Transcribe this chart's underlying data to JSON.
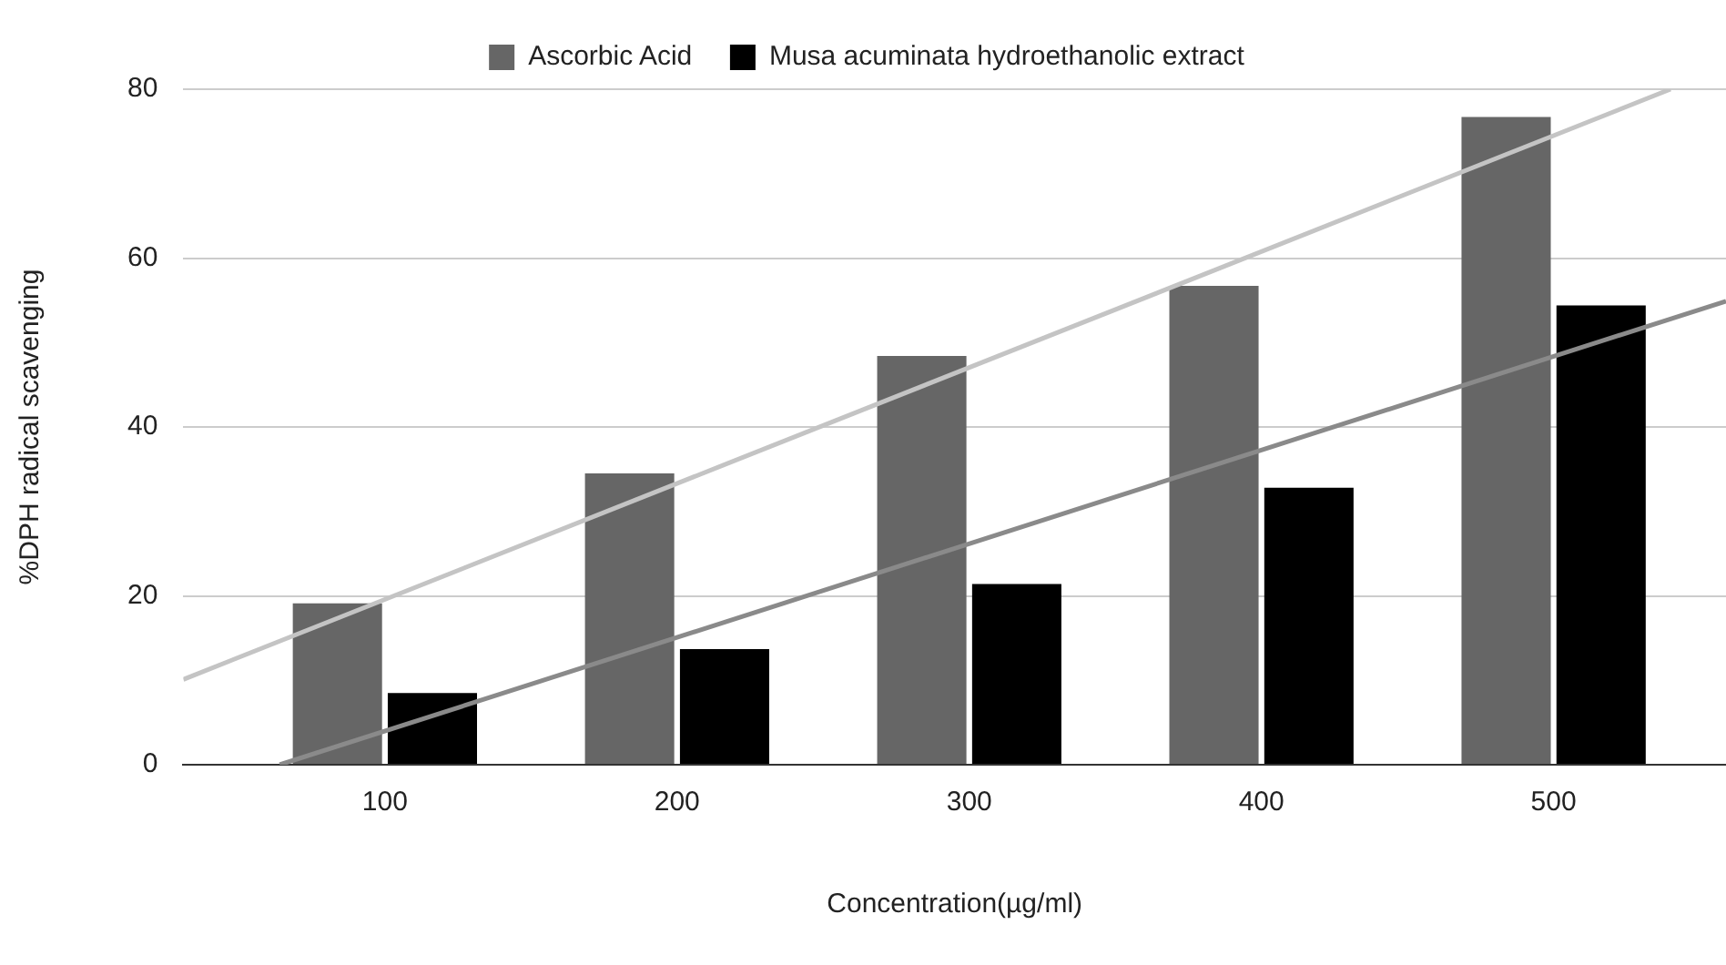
{
  "chart_data": {
    "type": "bar",
    "xlabel": "Concentration(µg/ml)",
    "ylabel": "%DPH radical scavenging",
    "x": [
      100,
      200,
      300,
      400,
      500
    ],
    "xlim": [
      31,
      559
    ],
    "xticks": [
      100,
      200,
      300,
      400,
      500
    ],
    "ylim": [
      0,
      80
    ],
    "yticks": [
      0,
      20,
      40,
      60,
      80
    ],
    "grid": "y",
    "legend": "top",
    "series": [
      {
        "name": "Ascorbic Acid",
        "color": "#666666",
        "values": [
          19.1,
          34.5,
          48.4,
          56.7,
          76.7
        ]
      },
      {
        "name": "Musa acuminata hydroethanolic extract",
        "color": "#000000",
        "values": [
          8.5,
          13.7,
          21.4,
          32.8,
          54.4
        ]
      },
      {
        "type": "line",
        "color": "#c4c4c4",
        "x": [
          31,
          540
        ],
        "values": [
          10.1,
          80
        ]
      },
      {
        "type": "line",
        "color": "#8a8a8a",
        "x": [
          64,
          559
        ],
        "values": [
          0,
          54.9
        ]
      }
    ]
  }
}
